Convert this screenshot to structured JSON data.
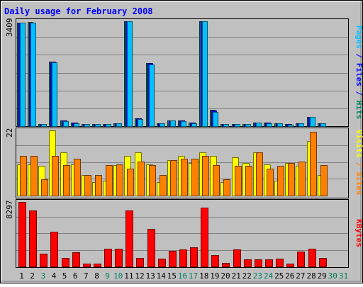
{
  "chart_data": [
    {
      "type": "bar",
      "title": "Daily usage for February 2008",
      "panel": "pages-files-hits",
      "ymax_label": "3409",
      "side_label": [
        {
          "text": "Pages",
          "color": "#00c0ff"
        },
        {
          "text": " / ",
          "color": "#0000ff"
        },
        {
          "text": "Files",
          "color": "#0000ff"
        },
        {
          "text": " / ",
          "color": "#0000ff"
        },
        {
          "text": "Hits",
          "color": "#00805c"
        }
      ],
      "categories": [
        "1",
        "2",
        "3",
        "4",
        "5",
        "6",
        "7",
        "8",
        "9",
        "10",
        "11",
        "12",
        "13",
        "14",
        "15",
        "16",
        "17",
        "18",
        "19",
        "20",
        "21",
        "22",
        "23",
        "24",
        "25",
        "26",
        "27",
        "28",
        "29",
        "30",
        "31"
      ],
      "category_colors": [
        "#000000",
        "#000000",
        "#00805c",
        "#000000",
        "#000000",
        "#000000",
        "#000000",
        "#000000",
        "#00805c",
        "#00805c",
        "#000000",
        "#000000",
        "#000000",
        "#000000",
        "#000000",
        "#00805c",
        "#00805c",
        "#000000",
        "#000000",
        "#000000",
        "#000000",
        "#000000",
        "#00805c",
        "#00805c",
        "#000000",
        "#000000",
        "#000000",
        "#000000",
        "#000000",
        "#00805c",
        "#00805c"
      ],
      "ylim": [
        0,
        3409
      ],
      "series": [
        {
          "name": "Hits",
          "color": "#00805c",
          "values": [
            3360,
            3380,
            80,
            2100,
            180,
            110,
            70,
            75,
            80,
            90,
            3409,
            250,
            2050,
            90,
            190,
            190,
            110,
            3409,
            520,
            70,
            80,
            80,
            120,
            110,
            90,
            60,
            90,
            310,
            100,
            0,
            0
          ]
        },
        {
          "name": "Files",
          "color": "#0000ff",
          "values": [
            3360,
            3370,
            78,
            2090,
            175,
            105,
            68,
            73,
            78,
            88,
            3409,
            245,
            2040,
            88,
            185,
            185,
            108,
            3400,
            510,
            68,
            78,
            78,
            118,
            108,
            88,
            58,
            88,
            305,
            98,
            0,
            0
          ]
        },
        {
          "name": "Pages",
          "color": "#00c0ff",
          "values": [
            3360,
            3360,
            75,
            2080,
            170,
            100,
            65,
            70,
            75,
            85,
            3409,
            240,
            2000,
            85,
            180,
            170,
            100,
            3409,
            470,
            65,
            75,
            75,
            110,
            100,
            85,
            55,
            85,
            290,
            95,
            0,
            0
          ]
        }
      ]
    },
    {
      "type": "bar",
      "panel": "visits-sites",
      "ymax_label": "22",
      "side_label": [
        {
          "text": "Visits",
          "color": "#ffff00"
        },
        {
          "text": " / ",
          "color": "#ff8000"
        },
        {
          "text": "Sites",
          "color": "#ff8000"
        }
      ],
      "ylim": [
        0,
        22
      ],
      "series": [
        {
          "name": "Visits",
          "color": "#ffff00",
          "values": [
            10.5,
            10.5,
            10,
            22,
            14.5,
            10.5,
            7,
            4.5,
            5,
            10.3,
            13.3,
            14.5,
            10.5,
            4.5,
            12,
            13.3,
            11,
            14.5,
            13.3,
            4.5,
            13,
            11,
            14.5,
            10.5,
            5,
            11,
            10,
            18.5,
            7,
            0,
            0
          ]
        },
        {
          "name": "Sites",
          "color": "#ff8000",
          "values": [
            13.3,
            13.3,
            5.5,
            13.3,
            10.3,
            12.5,
            7,
            7,
            10.3,
            10.5,
            9,
            11.5,
            10.3,
            7,
            12,
            12.5,
            12.5,
            13.3,
            10.3,
            5.5,
            10,
            10,
            14.5,
            9,
            10,
            11,
            11.5,
            21.5,
            10.3,
            0,
            0
          ]
        }
      ]
    },
    {
      "type": "bar",
      "panel": "kbytes",
      "ymax_label": "8297",
      "side_label": [
        {
          "text": "KBytes",
          "color": "#ff0000"
        }
      ],
      "ylim": [
        0,
        8297
      ],
      "series": [
        {
          "name": "KBytes",
          "color": "#ff0000",
          "values": [
            8297,
            7200,
            1600,
            4500,
            1100,
            1800,
            350,
            400,
            2250,
            2250,
            7200,
            1100,
            4800,
            1000,
            2000,
            2200,
            2500,
            7600,
            1500,
            500,
            2200,
            900,
            900,
            900,
            1000,
            350,
            1900,
            2300,
            1100,
            0,
            0
          ]
        }
      ]
    }
  ]
}
